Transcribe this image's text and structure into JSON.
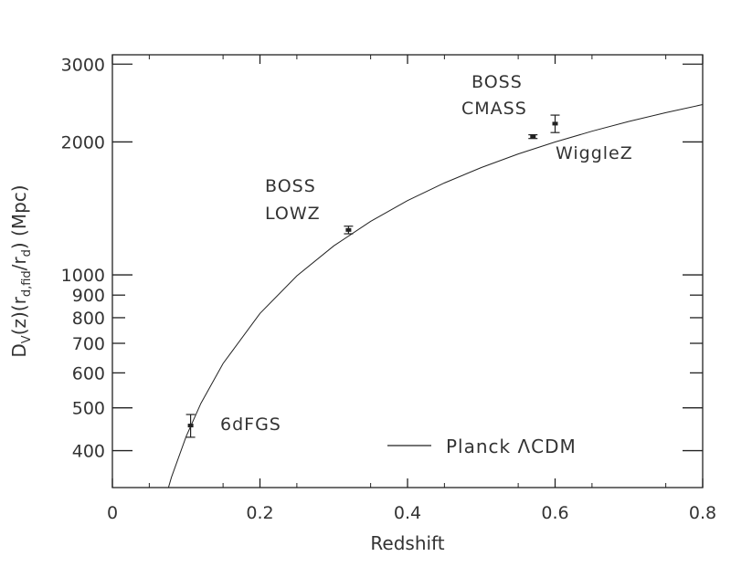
{
  "chart_data": {
    "type": "scatter",
    "xlabel": "Redshift",
    "ylabel": "D_V(z)(r_d,fid/r_d) (Mpc)",
    "xlim": [
      0,
      0.8
    ],
    "ylim": [
      330,
      3150
    ],
    "yscale": "log",
    "grid": false,
    "x_ticks": [
      0,
      0.2,
      0.4,
      0.6,
      0.8
    ],
    "x_tick_labels": [
      "0",
      "0.2",
      "0.4",
      "0.6",
      "0.8"
    ],
    "y_ticks": [
      400,
      500,
      600,
      700,
      800,
      900,
      1000,
      2000,
      3000
    ],
    "y_tick_labels": [
      "400",
      "500",
      "600",
      "700",
      "800",
      "900",
      "1000",
      "2000",
      "3000"
    ],
    "points": [
      {
        "label": "6dFGS",
        "z": 0.106,
        "dv": 456,
        "err": 27
      },
      {
        "label_lines": [
          "BOSS",
          "LOWZ"
        ],
        "z": 0.32,
        "dv": 1264,
        "err": 25
      },
      {
        "label_lines": [
          "BOSS",
          "CMASS"
        ],
        "z": 0.57,
        "dv": 2056,
        "err": 20
      },
      {
        "label": "WiggleZ",
        "z": 0.6,
        "dv": 2200,
        "err": 100
      }
    ],
    "model_curve": {
      "name": "Planck ΛCDM",
      "x": [
        0.07,
        0.08,
        0.1,
        0.12,
        0.15,
        0.2,
        0.25,
        0.3,
        0.35,
        0.4,
        0.45,
        0.5,
        0.55,
        0.6,
        0.65,
        0.7,
        0.75,
        0.8
      ],
      "y": [
        305,
        348,
        431,
        512,
        630,
        818,
        995,
        1163,
        1322,
        1473,
        1615,
        1750,
        1878,
        1999,
        2115,
        2225,
        2330,
        2430
      ]
    },
    "legend": {
      "label": "Planck ΛCDM",
      "position": "bottom-right"
    }
  }
}
